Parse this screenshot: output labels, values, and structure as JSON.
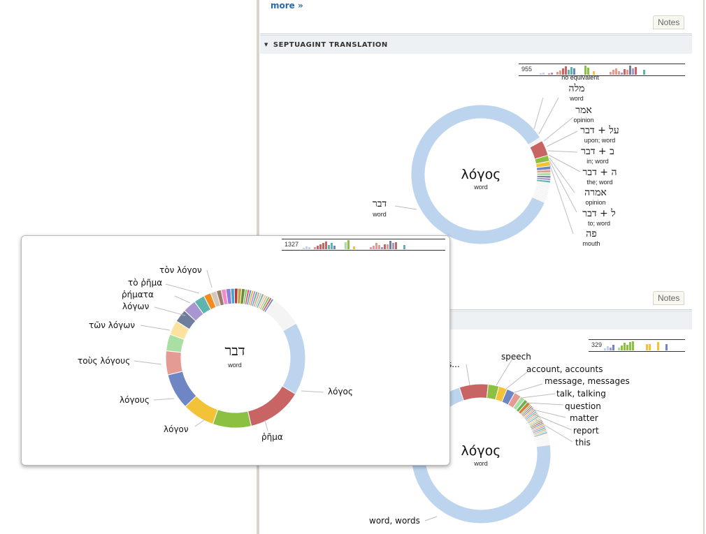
{
  "top_link": {
    "more": "more »"
  },
  "notes_label": "Notes",
  "notes_label_2": "Notes",
  "septuagint_section": {
    "title": "SEPTUAGINT TRANSLATION",
    "histogram_count": "955",
    "center": {
      "word": "λόγος",
      "gloss": "word"
    },
    "main_label": {
      "word": "דבר",
      "gloss": "word"
    },
    "labels": [
      {
        "word": "",
        "gloss": "no equivalent"
      },
      {
        "word": "מלה",
        "gloss": "word"
      },
      {
        "word": "אמר",
        "gloss": "opinion"
      },
      {
        "word": "על + דבר",
        "gloss": "upon; word"
      },
      {
        "word": "ב + דבר",
        "gloss": "in; word"
      },
      {
        "word": "ה + דבר",
        "gloss": "the; word"
      },
      {
        "word": "אמרה",
        "gloss": "opinion"
      },
      {
        "word": "ל + דבר",
        "gloss": "to; word"
      },
      {
        "word": "פה",
        "gloss": "mouth"
      }
    ]
  },
  "english_section": {
    "histogram_count": "329",
    "center": {
      "word": "λόγος",
      "gloss": "word"
    },
    "main_label": "word, words",
    "partial_label": "s...",
    "labels": [
      "speech",
      "account, accounts",
      "message, messages",
      "talk, talking",
      "question",
      "matter",
      "report",
      "this"
    ]
  },
  "popup": {
    "histogram_count": "1327",
    "center": {
      "word": "דבר",
      "gloss": "word"
    },
    "labels": [
      "λόγος",
      "ῥῆμα",
      "λόγον",
      "λόγους",
      "τοὺς λόγους",
      "τῶν λόγων",
      "λόγων",
      "ῥήματα",
      "τὸ ῥῆμα",
      "τὸν λόγον"
    ]
  },
  "colors": {
    "blue_light": "#bcd4ee",
    "red": "#c96464",
    "green": "#8cc043",
    "yellow": "#f2c239",
    "slate": "#6f86c4",
    "salmon": "#e49b94",
    "mint": "#a9dfa3",
    "cream": "#fbe29d",
    "gray_blue": "#6e7f9e",
    "lavender": "#a995cf",
    "teal": "#5fb5ad",
    "orange": "#f28b20"
  }
}
